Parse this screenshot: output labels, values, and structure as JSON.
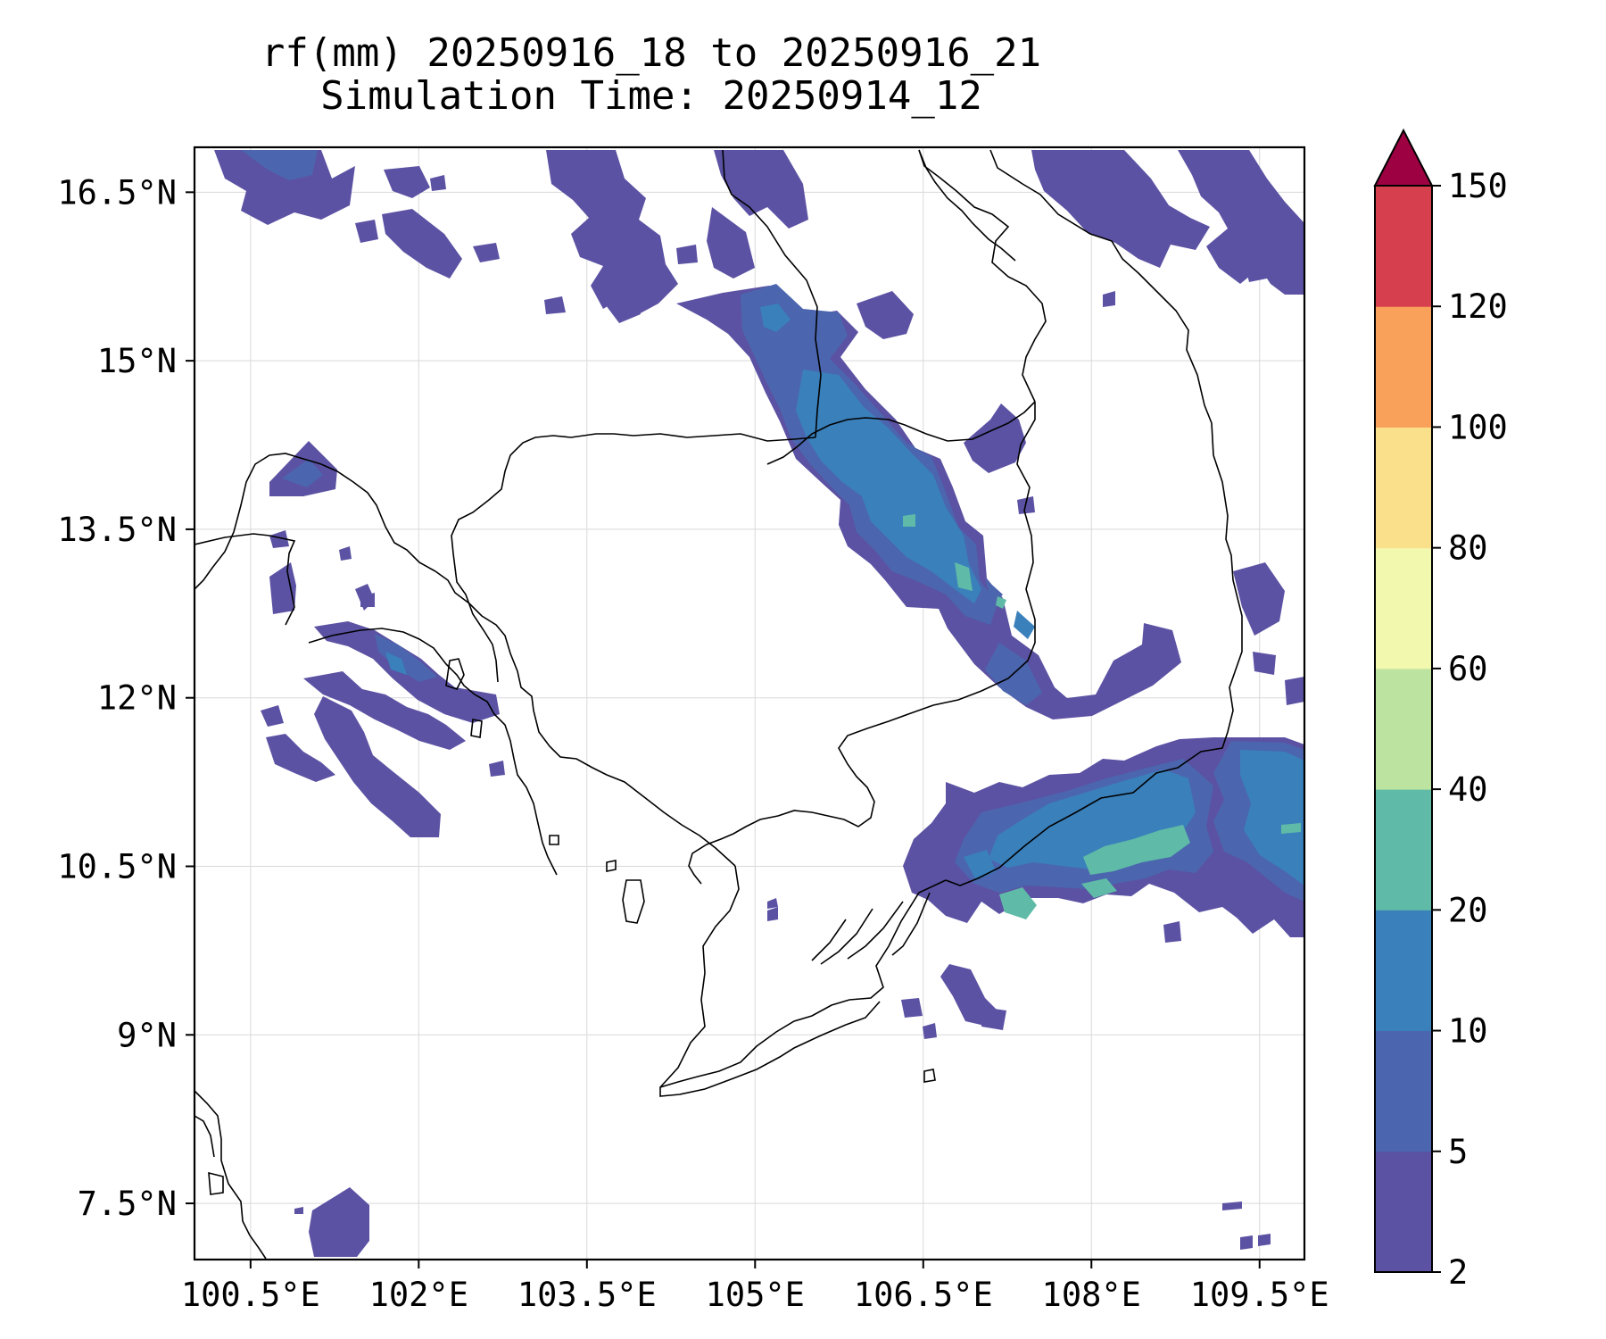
{
  "title": {
    "line1": "rf(mm) 20250916_18 to 20250916_21",
    "line2": "Simulation Time: 20250914_12"
  },
  "map": {
    "lon_range": [
      100.0,
      109.9
    ],
    "lat_range": [
      7.0,
      16.9
    ],
    "lon_ticks": [
      {
        "value": 100.5,
        "label": "100.5°E"
      },
      {
        "value": 102.0,
        "label": "102°E"
      },
      {
        "value": 103.5,
        "label": "103.5°E"
      },
      {
        "value": 105.0,
        "label": "105°E"
      },
      {
        "value": 106.5,
        "label": "106.5°E"
      },
      {
        "value": 108.0,
        "label": "108°E"
      },
      {
        "value": 109.5,
        "label": "109.5°E"
      }
    ],
    "lat_ticks": [
      {
        "value": 7.5,
        "label": "7.5°N"
      },
      {
        "value": 9.0,
        "label": "9°N"
      },
      {
        "value": 10.5,
        "label": "10.5°N"
      },
      {
        "value": 12.0,
        "label": "12°N"
      },
      {
        "value": 13.5,
        "label": "13.5°N"
      },
      {
        "value": 15.0,
        "label": "15°N"
      },
      {
        "value": 16.5,
        "label": "16.5°N"
      }
    ],
    "grid": true
  },
  "colorbar": {
    "levels": [
      2,
      5,
      10,
      20,
      40,
      60,
      80,
      100,
      120,
      150
    ],
    "labels": [
      "2",
      "5",
      "10",
      "20",
      "40",
      "60",
      "80",
      "100",
      "120",
      "150"
    ],
    "colors": [
      "#5b52a3",
      "#4b66ae",
      "#3a80bb",
      "#5fbba7",
      "#bde3a0",
      "#f2f8ad",
      "#fbe08c",
      "#f9a05a",
      "#d6404e"
    ],
    "extend_color": "#9e0142"
  },
  "rain_colors": {
    "light": "#5b52a3",
    "mid": "#4b66ae",
    "heavy": "#3a80bb",
    "peak": "#5fbba7"
  }
}
